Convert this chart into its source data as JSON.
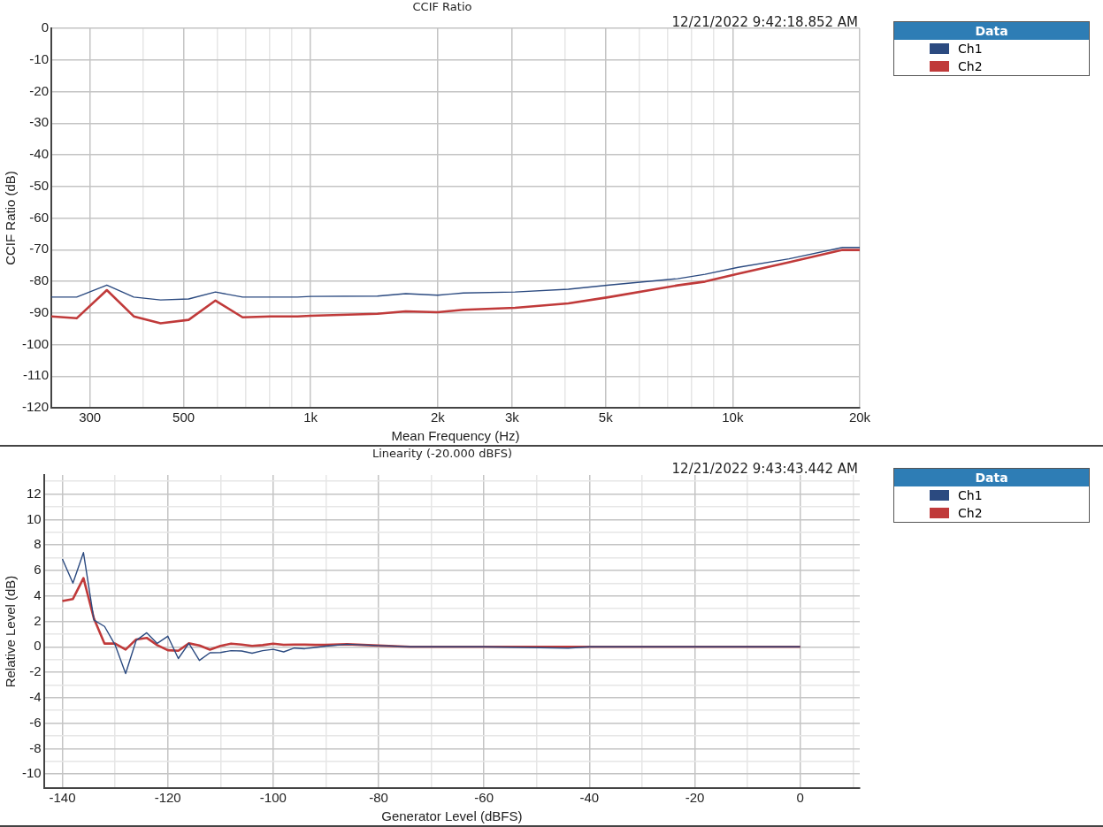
{
  "chart_data": [
    {
      "type": "line",
      "title": "CCIF Ratio",
      "annotations": [
        "12/21/2022 9:42:18.852 AM"
      ],
      "xlabel": "Mean Frequency (Hz)",
      "ylabel": "CCIF Ratio (dB)",
      "log": "x",
      "legend": "right",
      "legend_title": "Data",
      "grid": true,
      "marker": "none",
      "line_style": "solid",
      "x": [
        243,
        279,
        329,
        381,
        441,
        514,
        595,
        690,
        804,
        931,
        1000,
        1440,
        1680,
        2000,
        2300,
        3050,
        4080,
        5100,
        7400,
        8600,
        10300,
        13600,
        18200,
        20000
      ],
      "xlim": [
        243,
        20000
      ],
      "xticks": [
        {
          "value": 300,
          "label": "300"
        },
        {
          "value": 400,
          "label": null
        },
        {
          "value": 500,
          "label": "500"
        },
        {
          "value": 600,
          "label": null
        },
        {
          "value": 700,
          "label": null
        },
        {
          "value": 800,
          "label": null
        },
        {
          "value": 900,
          "label": null
        },
        {
          "value": 1000,
          "label": "1k"
        },
        {
          "value": 2000,
          "label": "2k"
        },
        {
          "value": 3000,
          "label": "3k"
        },
        {
          "value": 4000,
          "label": null
        },
        {
          "value": 5000,
          "label": "5k"
        },
        {
          "value": 6000,
          "label": null
        },
        {
          "value": 7000,
          "label": null
        },
        {
          "value": 8000,
          "label": null
        },
        {
          "value": 9000,
          "label": null
        },
        {
          "value": 10000,
          "label": "10k"
        },
        {
          "value": 20000,
          "label": "20k"
        }
      ],
      "ylim": [
        -120,
        0
      ],
      "yticks": [
        -120,
        -110,
        -100,
        -90,
        -80,
        -70,
        -60,
        -50,
        -40,
        -30,
        -20,
        -10,
        0
      ],
      "series": [
        {
          "name": "Ch1",
          "color": "#2b4a80",
          "values": [
            -85.0,
            -85.0,
            -81.2,
            -85.0,
            -85.9,
            -85.6,
            -83.4,
            -85.0,
            -85.0,
            -85.0,
            -84.8,
            -84.7,
            -83.9,
            -84.4,
            -83.7,
            -83.4,
            -82.5,
            -81.2,
            -79.2,
            -77.8,
            -75.6,
            -72.9,
            -69.3,
            -69.3
          ]
        },
        {
          "name": "Ch2",
          "color": "#c03a3a",
          "values": [
            -91.1,
            -91.7,
            -82.8,
            -91.1,
            -93.3,
            -92.2,
            -86.1,
            -91.4,
            -91.1,
            -91.1,
            -90.9,
            -90.3,
            -89.5,
            -89.8,
            -89.0,
            -88.4,
            -87.0,
            -85.0,
            -81.3,
            -80.1,
            -77.6,
            -74.0,
            -70.1,
            -70.1
          ]
        }
      ]
    },
    {
      "type": "line",
      "title": "Linearity (-20.000 dBFS)",
      "annotations": [
        "12/21/2022 9:43:43.442 AM"
      ],
      "xlabel": "Generator Level (dBFS)",
      "ylabel": "Relative Level (dB)",
      "legend": "right",
      "legend_title": "Data",
      "grid": true,
      "marker": "none",
      "line_style": "solid",
      "x": [
        -140,
        -138,
        -136,
        -134,
        -132,
        -130,
        -128,
        -126,
        -124,
        -122,
        -120,
        -118,
        -116,
        -114,
        -112,
        -110,
        -108,
        -106,
        -104,
        -102,
        -100,
        -98,
        -96,
        -94,
        -92,
        -90,
        -86,
        -80,
        -74,
        -60,
        -44,
        -40,
        -20,
        0
      ],
      "xlim": [
        -143.5,
        11.3
      ],
      "xticks": [
        {
          "value": -140,
          "label": "-140"
        },
        {
          "value": -130,
          "label": null
        },
        {
          "value": -120,
          "label": "-120"
        },
        {
          "value": -110,
          "label": null
        },
        {
          "value": -100,
          "label": "-100"
        },
        {
          "value": -90,
          "label": null
        },
        {
          "value": -80,
          "label": "-80"
        },
        {
          "value": -70,
          "label": null
        },
        {
          "value": -60,
          "label": "-60"
        },
        {
          "value": -50,
          "label": null
        },
        {
          "value": -40,
          "label": "-40"
        },
        {
          "value": -30,
          "label": null
        },
        {
          "value": -20,
          "label": "-20"
        },
        {
          "value": -10,
          "label": null
        },
        {
          "value": 0,
          "label": "0"
        },
        {
          "value": 10,
          "label": null
        }
      ],
      "ylim": [
        -11.1,
        13.5
      ],
      "yticks": [
        {
          "value": -10,
          "label": "-10"
        },
        {
          "value": -9,
          "label": null
        },
        {
          "value": -8,
          "label": "-8"
        },
        {
          "value": -7,
          "label": null
        },
        {
          "value": -6,
          "label": "-6"
        },
        {
          "value": -5,
          "label": null
        },
        {
          "value": -4,
          "label": "-4"
        },
        {
          "value": -3,
          "label": null
        },
        {
          "value": -2,
          "label": "-2"
        },
        {
          "value": -1,
          "label": null
        },
        {
          "value": 0,
          "label": "0"
        },
        {
          "value": 1,
          "label": null
        },
        {
          "value": 2,
          "label": "2"
        },
        {
          "value": 3,
          "label": null
        },
        {
          "value": 4,
          "label": "4"
        },
        {
          "value": 5,
          "label": null
        },
        {
          "value": 6,
          "label": "6"
        },
        {
          "value": 7,
          "label": null
        },
        {
          "value": 8,
          "label": "8"
        },
        {
          "value": 9,
          "label": null
        },
        {
          "value": 10,
          "label": "10"
        },
        {
          "value": 11,
          "label": null
        },
        {
          "value": 12,
          "label": "12"
        },
        {
          "value": 13,
          "label": null
        }
      ],
      "series": [
        {
          "name": "Ch1",
          "color": "#2b4a80",
          "values": [
            6.9,
            5.0,
            7.4,
            2.1,
            1.6,
            0.15,
            -2.1,
            0.5,
            1.1,
            0.27,
            0.83,
            -0.92,
            0.27,
            -1.07,
            -0.47,
            -0.45,
            -0.3,
            -0.33,
            -0.5,
            -0.3,
            -0.2,
            -0.4,
            -0.1,
            -0.15,
            -0.05,
            0.05,
            0.2,
            0.1,
            0,
            0,
            -0.1,
            0,
            0,
            0
          ]
        },
        {
          "name": "Ch2",
          "color": "#c03a3a",
          "values": [
            3.6,
            3.76,
            5.4,
            2.2,
            0.25,
            0.25,
            -0.22,
            0.58,
            0.7,
            0.13,
            -0.27,
            -0.31,
            0.27,
            0.1,
            -0.22,
            0.07,
            0.25,
            0.18,
            0.07,
            0.13,
            0.25,
            0.16,
            0.18,
            0.18,
            0.15,
            0.15,
            0.2,
            0.1,
            0,
            0,
            0,
            0,
            0,
            0
          ]
        }
      ]
    }
  ]
}
